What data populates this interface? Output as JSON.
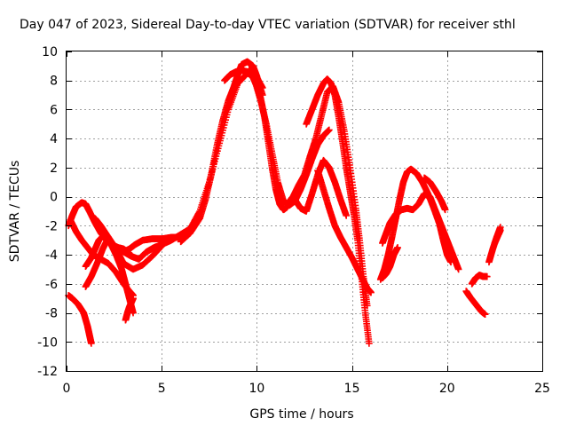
{
  "chart_data": {
    "type": "scatter",
    "title": "Day 047 of 2023, Sidereal Day-to-day VTEC variation (SDTVAR) for receiver sthl",
    "xlabel": "GPS time / hours",
    "ylabel": "SDTVAR / TECUs",
    "xlim": [
      0,
      25
    ],
    "ylim": [
      -12,
      10
    ],
    "xticks": [
      0,
      5,
      10,
      15,
      20,
      25
    ],
    "xtick_labels": [
      "0",
      "5",
      "10",
      "15",
      "20",
      "25"
    ],
    "yticks": [
      -12,
      -10,
      -8,
      -6,
      -4,
      -2,
      0,
      2,
      4,
      6,
      8,
      10
    ],
    "ytick_labels": [
      "-12",
      "-10",
      "-8",
      "-6",
      "-4",
      "-2",
      "0",
      "2",
      "4",
      "6",
      "8",
      "10"
    ],
    "grid": true,
    "marker": "+",
    "color": "#ff0000",
    "series": [
      {
        "name": "s1",
        "x": [
          0.1,
          0.3,
          0.5,
          0.8,
          1.0,
          1.2,
          1.5,
          1.8,
          2.1,
          2.4,
          2.7,
          3.0,
          3.3
        ],
        "y": [
          -2.0,
          -1.3,
          -0.7,
          -0.4,
          -0.5,
          -1.0,
          -1.8,
          -2.5,
          -3.0,
          -3.3,
          -3.5,
          -3.6,
          -3.9
        ]
      },
      {
        "name": "s2",
        "x": [
          0.2,
          0.5,
          0.8,
          1.1,
          1.4,
          1.8,
          2.2,
          2.6,
          3.0,
          3.3,
          3.5
        ],
        "y": [
          -1.6,
          -2.4,
          -3.0,
          -3.5,
          -4.0,
          -4.3,
          -4.6,
          -5.2,
          -6.0,
          -6.5,
          -6.8
        ]
      },
      {
        "name": "s3",
        "x": [
          0.1,
          0.3,
          0.6,
          0.9,
          1.1,
          1.2,
          1.3
        ],
        "y": [
          -6.8,
          -7.0,
          -7.4,
          -8.0,
          -8.9,
          -9.5,
          -10.1
        ]
      },
      {
        "name": "s4",
        "x": [
          1.0,
          1.3,
          1.6,
          1.9,
          2.2,
          2.6,
          3.0,
          3.5,
          4.0,
          4.5,
          5.0
        ],
        "y": [
          -6.2,
          -5.5,
          -4.6,
          -3.6,
          -2.8,
          -3.6,
          -4.6,
          -5.0,
          -4.7,
          -4.1,
          -3.4
        ]
      },
      {
        "name": "s5",
        "x": [
          1.0,
          1.3,
          1.5,
          1.7,
          2.0,
          2.3,
          2.6,
          2.9,
          3.1,
          3.3,
          3.5
        ],
        "y": [
          -4.8,
          -4.2,
          -3.6,
          -3.0,
          -2.6,
          -3.2,
          -4.0,
          -5.0,
          -6.0,
          -7.0,
          -8.0
        ]
      },
      {
        "name": "s6",
        "x": [
          1.5,
          1.8,
          2.1,
          2.4,
          2.7,
          3.0,
          3.3,
          3.6,
          4.0,
          4.5,
          5.0,
          5.5,
          6.0,
          6.3
        ],
        "y": [
          -1.5,
          -2.0,
          -2.6,
          -3.2,
          -3.6,
          -3.8,
          -3.6,
          -3.3,
          -3.0,
          -2.9,
          -2.9,
          -2.8,
          -2.8,
          -2.7
        ]
      },
      {
        "name": "s7",
        "x": [
          3.1,
          3.2,
          3.3,
          3.4,
          3.5
        ],
        "y": [
          -8.5,
          -8.0,
          -7.6,
          -7.3,
          -7.0
        ]
      },
      {
        "name": "s8",
        "x": [
          2.6,
          3.0,
          3.4,
          3.8,
          4.2,
          4.6,
          5.0,
          5.5,
          6.0,
          6.5,
          7.0,
          7.5,
          8.0,
          8.5,
          9.0,
          9.5,
          10.0,
          10.3
        ],
        "y": [
          -3.5,
          -3.8,
          -4.1,
          -4.3,
          -3.8,
          -3.5,
          -3.3,
          -3.0,
          -2.6,
          -2.2,
          -1.0,
          1.0,
          3.5,
          6.0,
          7.8,
          8.5,
          8.2,
          7.5
        ]
      },
      {
        "name": "s9",
        "x": [
          6.0,
          6.5,
          7.0,
          7.3,
          7.6,
          7.9,
          8.2,
          8.5,
          8.8,
          9.0,
          9.2,
          9.5,
          9.8,
          10.0,
          10.3
        ],
        "y": [
          -3.1,
          -2.5,
          -1.5,
          -0.2,
          1.5,
          3.5,
          5.2,
          6.6,
          7.6,
          8.4,
          9.1,
          9.3,
          9.0,
          8.3,
          7.0
        ]
      },
      {
        "name": "s10",
        "x": [
          8.3,
          8.6,
          8.9,
          9.2,
          9.5,
          9.8,
          10.0,
          10.2,
          10.4,
          10.6,
          10.8,
          11.0,
          11.2,
          11.4,
          11.6
        ],
        "y": [
          8.0,
          8.4,
          8.6,
          8.7,
          8.6,
          8.2,
          7.6,
          6.8,
          5.5,
          3.8,
          2.0,
          0.5,
          -0.5,
          -0.9,
          -0.7
        ]
      },
      {
        "name": "s11",
        "x": [
          9.6,
          9.9,
          10.2,
          10.5,
          10.8,
          11.1,
          11.4,
          11.7,
          12.0,
          12.3,
          12.6,
          12.9,
          13.2,
          13.5,
          13.8
        ],
        "y": [
          8.8,
          8.0,
          6.6,
          5.0,
          3.0,
          1.0,
          -0.3,
          -0.6,
          -0.3,
          0.5,
          1.5,
          2.6,
          3.6,
          4.2,
          4.6
        ]
      },
      {
        "name": "s12",
        "x": [
          11.6,
          11.9,
          12.2,
          12.5,
          12.8,
          13.1,
          13.4,
          13.7,
          14.0,
          14.3,
          14.6,
          14.9,
          15.2,
          15.4,
          15.6,
          15.8
        ],
        "y": [
          -0.5,
          0.0,
          0.8,
          1.5,
          2.8,
          4.0,
          5.6,
          7.2,
          7.6,
          6.5,
          4.5,
          2.0,
          -0.8,
          -3.0,
          -5.5,
          -7.5
        ]
      },
      {
        "name": "s13",
        "x": [
          12.6,
          12.9,
          13.2,
          13.5,
          13.7,
          13.9,
          14.1,
          14.3,
          14.5,
          14.7,
          14.9,
          15.1,
          15.3,
          15.5,
          15.7,
          15.9
        ],
        "y": [
          5.0,
          6.0,
          7.0,
          7.8,
          8.1,
          7.8,
          7.0,
          5.5,
          3.8,
          2.0,
          0.4,
          -1.2,
          -3.0,
          -5.5,
          -8.0,
          -10.1
        ]
      },
      {
        "name": "s14",
        "x": [
          13.2,
          13.5,
          13.8,
          14.1,
          14.4,
          14.7,
          15.0,
          15.3,
          15.6,
          15.8,
          16.0
        ],
        "y": [
          1.8,
          0.5,
          -0.8,
          -2.0,
          -2.8,
          -3.5,
          -4.2,
          -5.0,
          -5.8,
          -6.3,
          -6.6
        ]
      },
      {
        "name": "s15",
        "x": [
          12.0,
          12.3,
          12.6,
          12.9,
          13.2,
          13.5,
          13.8,
          14.1,
          14.4,
          14.7
        ],
        "y": [
          -0.2,
          -0.8,
          -1.0,
          0.2,
          1.5,
          2.5,
          2.0,
          1.0,
          -0.2,
          -1.3
        ]
      },
      {
        "name": "s16",
        "x": [
          16.5,
          16.7,
          16.9,
          17.1,
          17.3,
          17.5,
          17.7,
          17.9,
          18.1,
          18.4,
          18.7,
          19.0,
          19.3,
          19.6,
          19.8,
          20.0,
          20.2
        ],
        "y": [
          -5.7,
          -5.0,
          -4.0,
          -2.8,
          -1.5,
          -0.2,
          1.0,
          1.7,
          1.9,
          1.6,
          1.0,
          0.2,
          -0.8,
          -1.9,
          -3.0,
          -4.0,
          -4.5
        ]
      },
      {
        "name": "s17",
        "x": [
          16.6,
          16.8,
          17.0,
          17.3,
          17.6,
          17.9,
          18.2,
          18.5,
          18.8,
          19.1,
          19.4,
          19.7,
          20.0,
          20.3,
          20.6
        ],
        "y": [
          -3.2,
          -2.5,
          -1.8,
          -1.2,
          -0.9,
          -0.8,
          -0.9,
          -0.5,
          0.2,
          0.0,
          -1.0,
          -2.0,
          -3.0,
          -4.0,
          -5.0
        ]
      },
      {
        "name": "s18",
        "x": [
          16.6,
          16.8,
          17.0,
          17.2,
          17.4
        ],
        "y": [
          -5.6,
          -5.3,
          -4.8,
          -4.0,
          -3.5
        ]
      },
      {
        "name": "s19",
        "x": [
          18.8,
          19.1,
          19.4,
          19.7,
          19.9
        ],
        "y": [
          1.3,
          1.0,
          0.4,
          -0.3,
          -0.9
        ]
      },
      {
        "name": "s20",
        "x": [
          21.0,
          21.2,
          21.5,
          21.8,
          22.0
        ],
        "y": [
          -6.5,
          -6.9,
          -7.4,
          -7.9,
          -8.1
        ]
      },
      {
        "name": "s21",
        "x": [
          21.3,
          21.5,
          21.7,
          21.9,
          22.1
        ],
        "y": [
          -6.0,
          -5.6,
          -5.4,
          -5.5,
          -5.5
        ]
      },
      {
        "name": "s22",
        "x": [
          22.2,
          22.4,
          22.6,
          22.8
        ],
        "y": [
          -4.5,
          -3.6,
          -2.8,
          -2.1
        ]
      },
      {
        "name": "s23",
        "x": [
          22.5,
          22.7,
          22.8
        ],
        "y": [
          -3.2,
          -2.6,
          -2.3
        ]
      }
    ]
  }
}
